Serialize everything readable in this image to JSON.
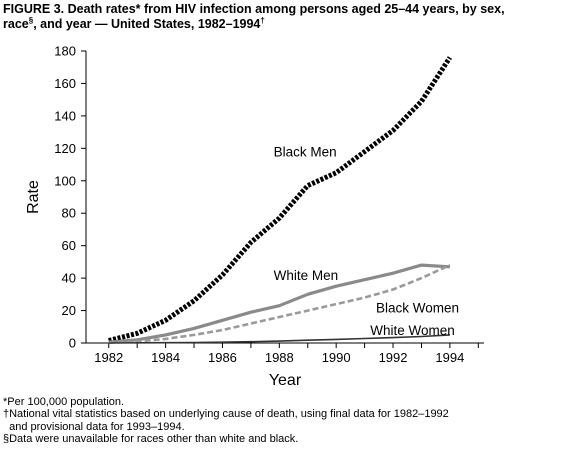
{
  "title": {
    "line1": "FIGURE 3. Death rates* from HIV infection among persons aged 25–44 years, by sex,",
    "line2_prefix": "race",
    "line2_sup": "§",
    "line2_suffix": ", and year — United States, 1982–1994",
    "line2_sup2": "†"
  },
  "footnotes": [
    "*Per 100,000 population.",
    "†National vital statistics based on underlying cause of death, using final data for 1982–1992",
    "  and provisional data for 1993–1994.",
    "§Data were unavailable for races other than white and black."
  ],
  "chart_data": {
    "type": "line",
    "xlabel": "Year",
    "ylabel": "Rate",
    "xlim": [
      1981.2,
      1995.2
    ],
    "ylim": [
      0,
      180
    ],
    "xticks": [
      1982,
      1984,
      1986,
      1988,
      1990,
      1992,
      1994
    ],
    "yticks": [
      0,
      20,
      40,
      60,
      80,
      100,
      120,
      140,
      160,
      180
    ],
    "grid": false,
    "series": [
      {
        "name": "Black Men",
        "style": "heavy-dotted",
        "color": "#000000",
        "x": [
          1982,
          1983,
          1984,
          1985,
          1986,
          1987,
          1988,
          1989,
          1990,
          1991,
          1992,
          1993,
          1994
        ],
        "y": [
          1.5,
          6,
          14,
          26,
          42,
          62,
          77,
          97,
          105,
          118,
          131,
          149,
          176
        ]
      },
      {
        "name": "White Men",
        "style": "solid-gray",
        "color": "#8a8a8a",
        "x": [
          1982,
          1983,
          1984,
          1985,
          1986,
          1987,
          1988,
          1989,
          1990,
          1991,
          1992,
          1993,
          1994
        ],
        "y": [
          0.5,
          2,
          5,
          9,
          14,
          19,
          23,
          30,
          35,
          39,
          43,
          48,
          47
        ]
      },
      {
        "name": "Black Women",
        "style": "dashed-gray",
        "color": "#9a9a9a",
        "x": [
          1982,
          1983,
          1984,
          1985,
          1986,
          1987,
          1988,
          1989,
          1990,
          1991,
          1992,
          1993,
          1994
        ],
        "y": [
          0.2,
          1,
          2.5,
          5,
          8,
          12,
          16,
          20,
          24,
          28,
          33,
          40,
          48
        ]
      },
      {
        "name": "White Women",
        "style": "solid-dark",
        "color": "#333333",
        "x": [
          1982,
          1983,
          1984,
          1985,
          1986,
          1987,
          1988,
          1989,
          1990,
          1991,
          1992,
          1993,
          1994
        ],
        "y": [
          0,
          0.1,
          0.2,
          0.3,
          0.5,
          0.8,
          1.2,
          1.7,
          2.2,
          2.8,
          3.3,
          4,
          5
        ]
      }
    ]
  }
}
